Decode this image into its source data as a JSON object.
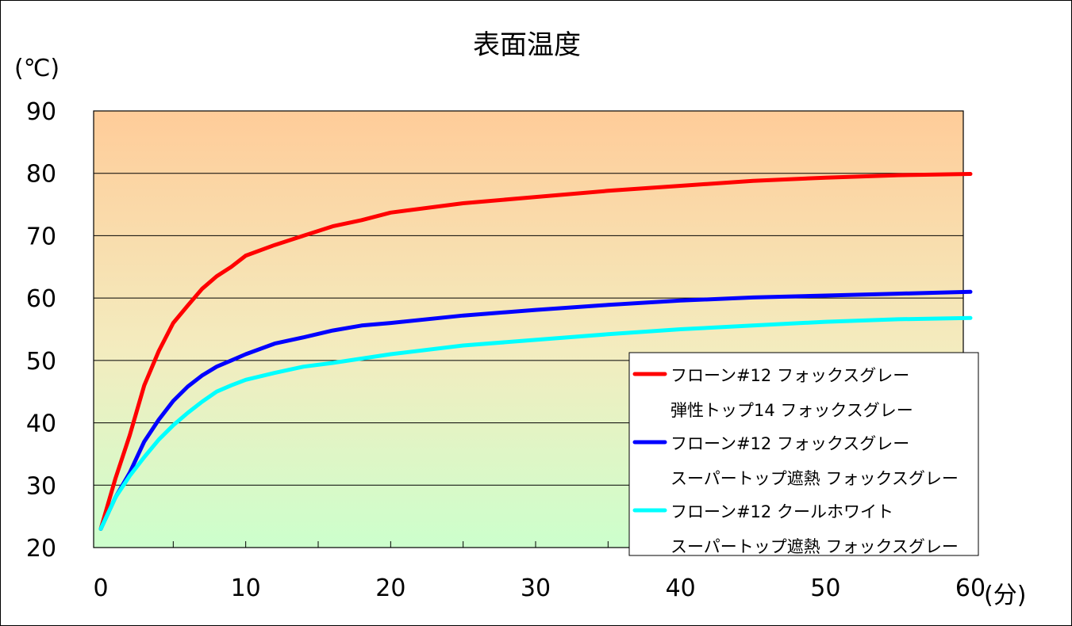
{
  "chart_data": {
    "type": "line",
    "title": "表面温度",
    "ylabel": "(℃)",
    "xlabel": "(分)",
    "xlim": [
      0,
      60
    ],
    "ylim": [
      20,
      90
    ],
    "x_ticks": [
      "0",
      "10",
      "20",
      "30",
      "40",
      "50",
      "60"
    ],
    "y_ticks": [
      "20",
      "30",
      "40",
      "50",
      "60",
      "70",
      "80",
      "90"
    ],
    "grid": true,
    "background": "gradient orange (top) to light green (bottom)",
    "legend_position": "right",
    "x": [
      0,
      1,
      2,
      3,
      4,
      5,
      6,
      7,
      8,
      9,
      10,
      12,
      14,
      16,
      18,
      20,
      25,
      30,
      35,
      40,
      45,
      50,
      55,
      60
    ],
    "series": [
      {
        "label_lines": [
          "フローン#12 フォックスグレー",
          "弾性トップ14 フォックスグレー"
        ],
        "color": "#ff0000",
        "values": [
          23,
          31,
          38,
          46,
          51.5,
          56,
          58.8,
          61.5,
          63.5,
          65,
          66.8,
          68.5,
          70,
          71.5,
          72.5,
          73.7,
          75.2,
          76.2,
          77.2,
          78,
          78.8,
          79.3,
          79.7,
          79.9
        ]
      },
      {
        "label_lines": [
          "フローン#12 フォックスグレー",
          "スーパートップ遮熱 フォックスグレー"
        ],
        "color": "#0000ff",
        "values": [
          23,
          28,
          32,
          37,
          40.5,
          43.5,
          45.8,
          47.6,
          49,
          50,
          51,
          52.7,
          53.7,
          54.8,
          55.6,
          56,
          57.2,
          58.1,
          58.9,
          59.6,
          60.1,
          60.4,
          60.7,
          61
        ]
      },
      {
        "label_lines": [
          "フローン#12 クールホワイト",
          "スーパートップ遮熱 フォックスグレー"
        ],
        "color": "#00ffff",
        "values": [
          23,
          28,
          31.5,
          34.5,
          37.3,
          39.6,
          41.6,
          43.4,
          45,
          46,
          46.9,
          48,
          49,
          49.6,
          50.3,
          51,
          52.4,
          53.3,
          54.2,
          55,
          55.6,
          56.2,
          56.6,
          56.8
        ]
      }
    ]
  }
}
